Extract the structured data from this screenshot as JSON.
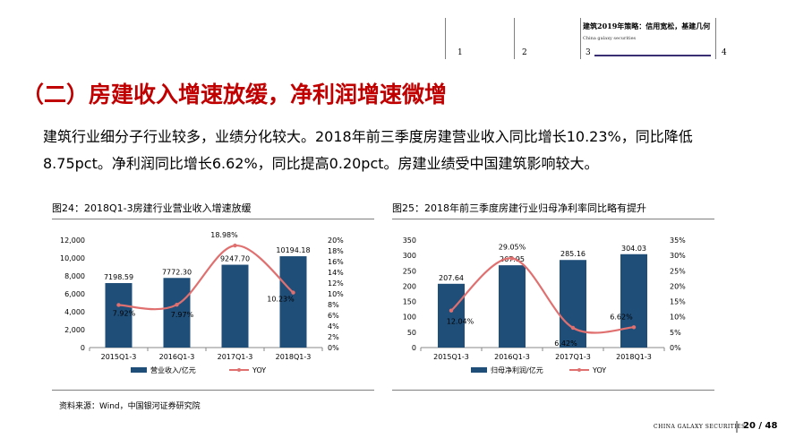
{
  "header": {
    "nav_numbers": [
      "1",
      "2",
      "3",
      "4"
    ],
    "report_title": "建筑2019年策略：信用宽松，基建几何",
    "report_subtitle": "China galaxy securities"
  },
  "title": "（二）房建收入增速放缓，净利润增速微增",
  "body": {
    "line1": "建筑行业细分子行业较多，业绩分化较大。2018年前三季度房建营业收入同比增长10.23%，同比降低",
    "line2": "8.75pct。净利润同比增长6.62%，同比提高0.20pct。房建业绩受中国建筑影响较大。"
  },
  "figures": {
    "fig24_title": "图24：2018Q1-3房建行业营业收入增速放缓",
    "fig25_title": "图25：2018年前三季度房建行业归母净利率同比略有提升"
  },
  "source": "资料来源：Wind，中国银河证券研究院",
  "footer": {
    "brand": "CHINA GALAXY SECURITIES",
    "page": "20 / 48"
  },
  "colors": {
    "bar": "#1f4e79",
    "line": "#e07070",
    "title_red": "#c00000"
  },
  "chart_data": [
    {
      "type": "bar",
      "categories": [
        "2015Q1-3",
        "2016Q1-3",
        "2017Q1-3",
        "2018Q1-3"
      ],
      "series": [
        {
          "name": "营业收入/亿元",
          "type": "bar",
          "axis": "left",
          "values": [
            7198.59,
            7772.3,
            9247.7,
            10194.18
          ],
          "labels": [
            "7198.59",
            "7772.30",
            "9247.70",
            "10194.18"
          ]
        },
        {
          "name": "YOY",
          "type": "line",
          "axis": "right",
          "values": [
            7.92,
            7.97,
            18.98,
            10.23
          ],
          "labels": [
            "7.92%",
            "7.97%",
            "18.98%",
            "10.23%"
          ]
        }
      ],
      "ylim_left": [
        0,
        12000
      ],
      "yticks_left": [
        "0",
        "2,000",
        "4,000",
        "6,000",
        "8,000",
        "10,000",
        "12,000"
      ],
      "ylim_right": [
        0,
        20
      ],
      "yticks_right": [
        "0%",
        "2%",
        "4%",
        "6%",
        "8%",
        "10%",
        "12%",
        "14%",
        "16%",
        "18%",
        "20%"
      ],
      "legend": "bottom"
    },
    {
      "type": "bar",
      "categories": [
        "2015Q1-3",
        "2016Q1-3",
        "2017Q1-3",
        "2018Q1-3"
      ],
      "series": [
        {
          "name": "归母净利润/亿元",
          "type": "bar",
          "axis": "left",
          "values": [
            207.64,
            267.95,
            285.16,
            304.03
          ],
          "labels": [
            "207.64",
            "267.95",
            "285.16",
            "304.03"
          ]
        },
        {
          "name": "YOY",
          "type": "line",
          "axis": "right",
          "values": [
            12.04,
            29.05,
            6.42,
            6.62
          ],
          "labels": [
            "12.04%",
            "29.05%",
            "6.42%",
            "6.62%"
          ]
        }
      ],
      "ylim_left": [
        0,
        350
      ],
      "yticks_left": [
        "0",
        "50",
        "100",
        "150",
        "200",
        "250",
        "300",
        "350"
      ],
      "ylim_right": [
        0,
        35
      ],
      "yticks_right": [
        "0%",
        "5%",
        "10%",
        "15%",
        "20%",
        "25%",
        "30%",
        "35%"
      ],
      "legend": "bottom"
    }
  ]
}
